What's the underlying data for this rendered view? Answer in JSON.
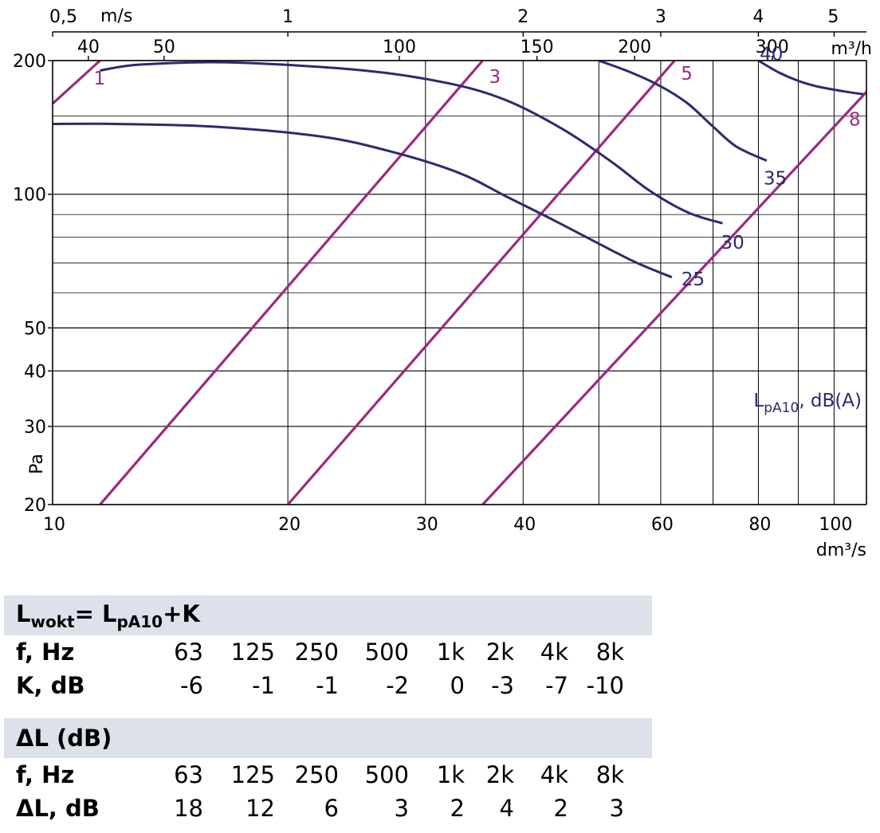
{
  "chart_data": {
    "type": "line",
    "title": "",
    "xlabel": "dm³/s",
    "ylabel": "Pa",
    "x_scale": "log",
    "y_scale": "log",
    "xlim": [
      10,
      110
    ],
    "ylim": [
      20,
      200
    ],
    "x_ticks": [
      10,
      20,
      30,
      40,
      60,
      80,
      100
    ],
    "y_ticks": [
      20,
      30,
      40,
      50,
      100,
      200
    ],
    "x_minor_gridlines": [
      50,
      70,
      90
    ],
    "y_minor_gridlines": [
      60,
      70,
      80,
      90,
      150
    ],
    "top_axis_flow": {
      "label": "m³/h",
      "ticks": [
        40,
        50,
        100,
        150,
        200,
        300
      ]
    },
    "top_axis_velocity": {
      "label": "m/s",
      "ticks": [
        "0,5",
        "1",
        "2",
        "3",
        "4",
        "5"
      ],
      "tick_flows_dm3s": [
        10,
        20,
        40,
        60,
        80,
        100
      ]
    },
    "sound_level_label": "LpA10, dB(A)",
    "sound_level_label_main": "L",
    "sound_level_label_sub": "pA10",
    "sound_level_label_rest": ", dB(A)",
    "series": [
      {
        "name": "1",
        "kind": "setting",
        "color": "#9b2a7f",
        "points": [
          [
            10,
            160
          ],
          [
            11.5,
            200
          ]
        ]
      },
      {
        "name": "3",
        "kind": "setting",
        "color": "#9b2a7f",
        "points": [
          [
            11.5,
            20
          ],
          [
            35.5,
            200
          ]
        ]
      },
      {
        "name": "5",
        "kind": "setting",
        "color": "#9b2a7f",
        "points": [
          [
            20,
            20
          ],
          [
            62.5,
            200
          ]
        ]
      },
      {
        "name": "8",
        "kind": "setting",
        "color": "#9b2a7f",
        "points": [
          [
            35.5,
            20
          ],
          [
            110,
            170
          ]
        ]
      },
      {
        "name": "40",
        "kind": "sound",
        "color": "#2b2a72",
        "points": [
          [
            80,
            200
          ],
          [
            85,
            188
          ],
          [
            90,
            180
          ],
          [
            95,
            175
          ],
          [
            100,
            172
          ],
          [
            104,
            170
          ],
          [
            109,
            168
          ]
        ]
      },
      {
        "name": "35",
        "kind": "sound",
        "color": "#2b2a72",
        "points": [
          [
            50,
            200
          ],
          [
            55,
            188
          ],
          [
            60,
            175
          ],
          [
            65,
            160
          ],
          [
            70,
            142
          ],
          [
            75,
            128
          ],
          [
            82,
            119
          ]
        ]
      },
      {
        "name": "30",
        "kind": "sound",
        "color": "#2b2a72",
        "points": [
          [
            11.5,
            190
          ],
          [
            13,
            196
          ],
          [
            17,
            198
          ],
          [
            25,
            190
          ],
          [
            32,
            178
          ],
          [
            38,
            163
          ],
          [
            45,
            140
          ],
          [
            52,
            118
          ],
          [
            58,
            102
          ],
          [
            65,
            91
          ],
          [
            72,
            86
          ]
        ]
      },
      {
        "name": "25",
        "kind": "sound",
        "color": "#2b2a72",
        "points": [
          [
            10,
            144
          ],
          [
            12,
            144
          ],
          [
            16,
            142
          ],
          [
            22,
            135
          ],
          [
            27,
            125
          ],
          [
            33,
            112
          ],
          [
            38,
            99
          ],
          [
            44,
            87
          ],
          [
            51,
            76
          ],
          [
            56,
            70
          ],
          [
            62,
            65
          ]
        ]
      }
    ]
  },
  "tables": [
    {
      "header_main": "L",
      "header_sub1": "wokt",
      "header_mid": "= L",
      "header_sub2": "pA10",
      "header_end": "+K",
      "rows": [
        {
          "label": "f, Hz",
          "cells": [
            "63",
            "125",
            "250",
            "500",
            "1k",
            "2k",
            "4k",
            "8k"
          ]
        },
        {
          "label": "K, dB",
          "cells": [
            "-6",
            "-1",
            "-1",
            "-2",
            "0",
            "-3",
            "-7",
            "-10"
          ]
        }
      ]
    },
    {
      "header": "ΔL (dB)",
      "rows": [
        {
          "label": "f, Hz",
          "cells": [
            "63",
            "125",
            "250",
            "500",
            "1k",
            "2k",
            "4k",
            "8k"
          ]
        },
        {
          "label": "ΔL, dB",
          "cells": [
            "18",
            "12",
            "6",
            "3",
            "2",
            "4",
            "2",
            "3"
          ]
        }
      ]
    }
  ]
}
